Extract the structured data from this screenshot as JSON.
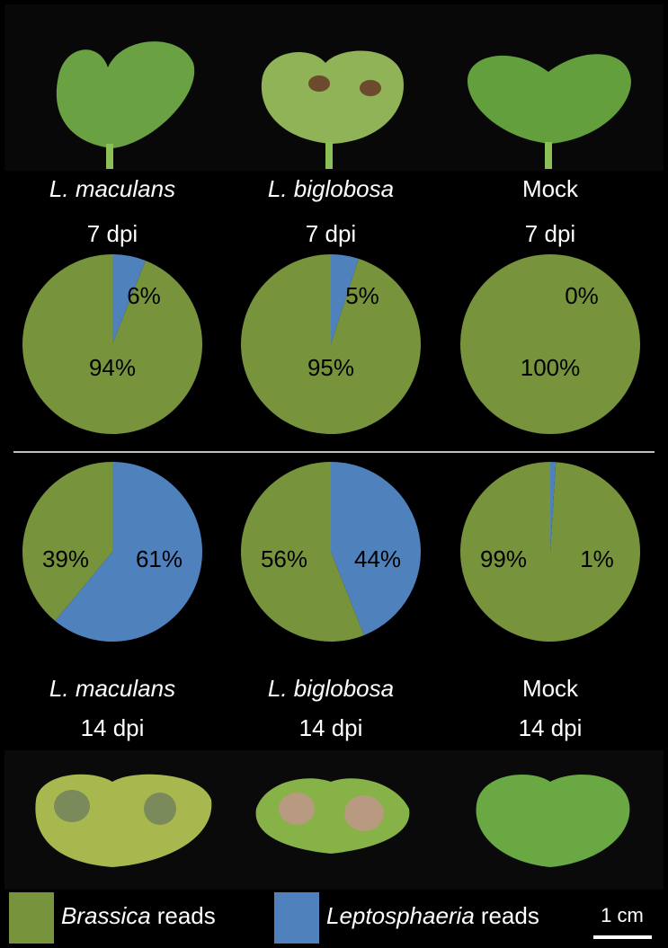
{
  "chart_data": [
    {
      "type": "pie",
      "title": "L. maculans",
      "title_style": "italic",
      "subtitle": "7 dpi",
      "categories": [
        "Brassica reads",
        "Leptosphaeria reads"
      ],
      "values": [
        94,
        6
      ],
      "value_labels": [
        "94%",
        "6%"
      ],
      "colors": [
        "#77933c",
        "#4f81bd"
      ]
    },
    {
      "type": "pie",
      "title": "L. biglobosa",
      "title_style": "italic",
      "subtitle": "7 dpi",
      "categories": [
        "Brassica reads",
        "Leptosphaeria reads"
      ],
      "values": [
        95,
        5
      ],
      "value_labels": [
        "95%",
        "5%"
      ],
      "colors": [
        "#77933c",
        "#4f81bd"
      ]
    },
    {
      "type": "pie",
      "title": "Mock",
      "title_style": "normal",
      "subtitle": "7 dpi",
      "categories": [
        "Brassica reads",
        "Leptosphaeria reads"
      ],
      "values": [
        100,
        0
      ],
      "value_labels": [
        "100%",
        "0%"
      ],
      "colors": [
        "#77933c",
        "#4f81bd"
      ]
    },
    {
      "type": "pie",
      "title": "L. maculans",
      "title_style": "italic",
      "subtitle": "14 dpi",
      "categories": [
        "Brassica reads",
        "Leptosphaeria reads"
      ],
      "values": [
        39,
        61
      ],
      "value_labels": [
        "39%",
        "61%"
      ],
      "colors": [
        "#77933c",
        "#4f81bd"
      ]
    },
    {
      "type": "pie",
      "title": "L. biglobosa",
      "title_style": "italic",
      "subtitle": "14 dpi",
      "categories": [
        "Brassica reads",
        "Leptosphaeria reads"
      ],
      "values": [
        56,
        44
      ],
      "value_labels": [
        "56%",
        "44%"
      ],
      "colors": [
        "#77933c",
        "#4f81bd"
      ]
    },
    {
      "type": "pie",
      "title": "Mock",
      "title_style": "normal",
      "subtitle": "14 dpi",
      "categories": [
        "Brassica reads",
        "Leptosphaeria reads"
      ],
      "values": [
        99,
        1
      ],
      "value_labels": [
        "99%",
        "1%"
      ],
      "colors": [
        "#77933c",
        "#4f81bd"
      ]
    }
  ],
  "legend": [
    {
      "name": "Brassica",
      "suffix": "reads",
      "color": "#77933c"
    },
    {
      "name": "Leptosphaeria",
      "suffix": "reads",
      "color": "#4f81bd"
    }
  ],
  "scale_bar": "1 cm"
}
